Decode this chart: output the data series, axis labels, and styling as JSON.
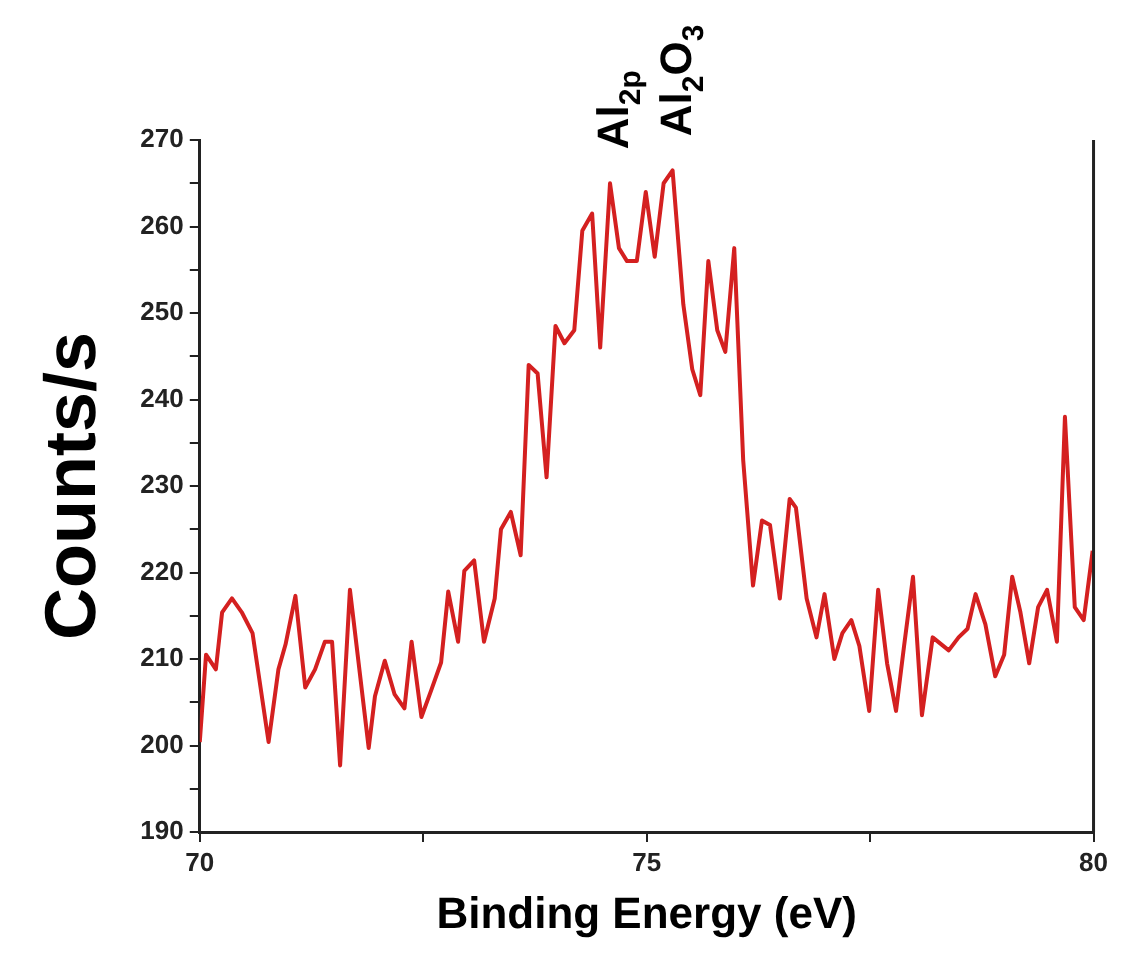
{
  "chart_data": {
    "type": "line",
    "xlabel": "Binding Energy (eV)",
    "ylabel": "Counts/s",
    "x": [
      70.0,
      70.07,
      70.18,
      70.25,
      70.36,
      70.47,
      70.59,
      70.77,
      70.88,
      70.96,
      71.07,
      71.18,
      71.29,
      71.4,
      71.48,
      71.57,
      71.68,
      71.89,
      71.96,
      72.07,
      72.18,
      72.29,
      72.37,
      72.48,
      72.59,
      72.7,
      72.78,
      72.89,
      72.96,
      73.07,
      73.18,
      73.3,
      73.37,
      73.48,
      73.59,
      73.68,
      73.78,
      73.88,
      73.98,
      74.08,
      74.19,
      74.28,
      74.39,
      74.48,
      74.59,
      74.69,
      74.78,
      74.89,
      74.99,
      75.09,
      75.19,
      75.29,
      75.41,
      75.51,
      75.6,
      75.69,
      75.79,
      75.88,
      75.98,
      76.08,
      76.19,
      76.29,
      76.38,
      76.49,
      76.6,
      76.67,
      76.79,
      76.9,
      76.99,
      77.1,
      77.19,
      77.29,
      77.38,
      77.49,
      77.59,
      77.69,
      77.79,
      77.88,
      77.98,
      78.08,
      78.2,
      78.38,
      78.49,
      78.59,
      78.68,
      78.79,
      78.9,
      79.0,
      79.09,
      79.18,
      79.28,
      79.38,
      79.48,
      79.59,
      79.68,
      79.79,
      79.89,
      79.99
    ],
    "series": [
      {
        "color": "#d42020",
        "values": [
          200.4,
          210.5,
          208.8,
          215.4,
          217,
          215.4,
          213,
          200.4,
          208.8,
          211.7,
          217.3,
          206.7,
          208.8,
          212,
          212,
          197.7,
          218,
          199.7,
          205.7,
          209.8,
          205.9,
          204.3,
          212,
          203.3,
          206.4,
          209.6,
          217.8,
          212,
          220.2,
          221.4,
          212,
          217,
          225,
          227,
          222,
          244,
          243,
          231,
          248.5,
          246.5,
          248,
          259.5,
          261.5,
          246,
          265,
          257.5,
          256,
          256,
          264,
          256.5,
          265,
          266.5,
          251,
          243.5,
          240.5,
          256,
          248,
          245.5,
          257.5,
          233,
          218.5,
          226,
          225.5,
          217,
          228.5,
          227.5,
          217,
          212.5,
          217.5,
          210,
          213,
          214.5,
          211.5,
          204,
          218,
          209.5,
          204,
          211.5,
          219.5,
          203.5,
          212.5,
          211,
          212.5,
          213.5,
          217.5,
          214,
          208,
          210.5,
          219.5,
          215.5,
          209.5,
          216,
          218,
          212,
          238,
          216,
          214.5,
          222.5
        ]
      }
    ],
    "xlim": [
      70,
      80
    ],
    "xticks": [
      70,
      {
        "value": 72.5,
        "label": null
      },
      75,
      {
        "value": 77.5,
        "label": null
      },
      80
    ],
    "ylim": [
      190,
      270
    ],
    "yticks": [
      190,
      {
        "value": 195,
        "label": null
      },
      200,
      {
        "value": 205,
        "label": null
      },
      210,
      {
        "value": 215,
        "label": null
      },
      220,
      {
        "value": 225,
        "label": null
      },
      230,
      {
        "value": 235,
        "label": null
      },
      240,
      {
        "value": 245,
        "label": null
      },
      250,
      {
        "value": 255,
        "label": null
      },
      260,
      {
        "value": 265,
        "label": null
      },
      270
    ],
    "annotations": [
      {
        "text": "Al$_{2p}$",
        "x": 74.59,
        "y": 265
      },
      {
        "text": "Al$_{2}$O$_{3}$",
        "x": 75.29,
        "y": 266.5
      }
    ],
    "grid": false,
    "legend": false,
    "marker": "none",
    "line_style": "solid"
  }
}
